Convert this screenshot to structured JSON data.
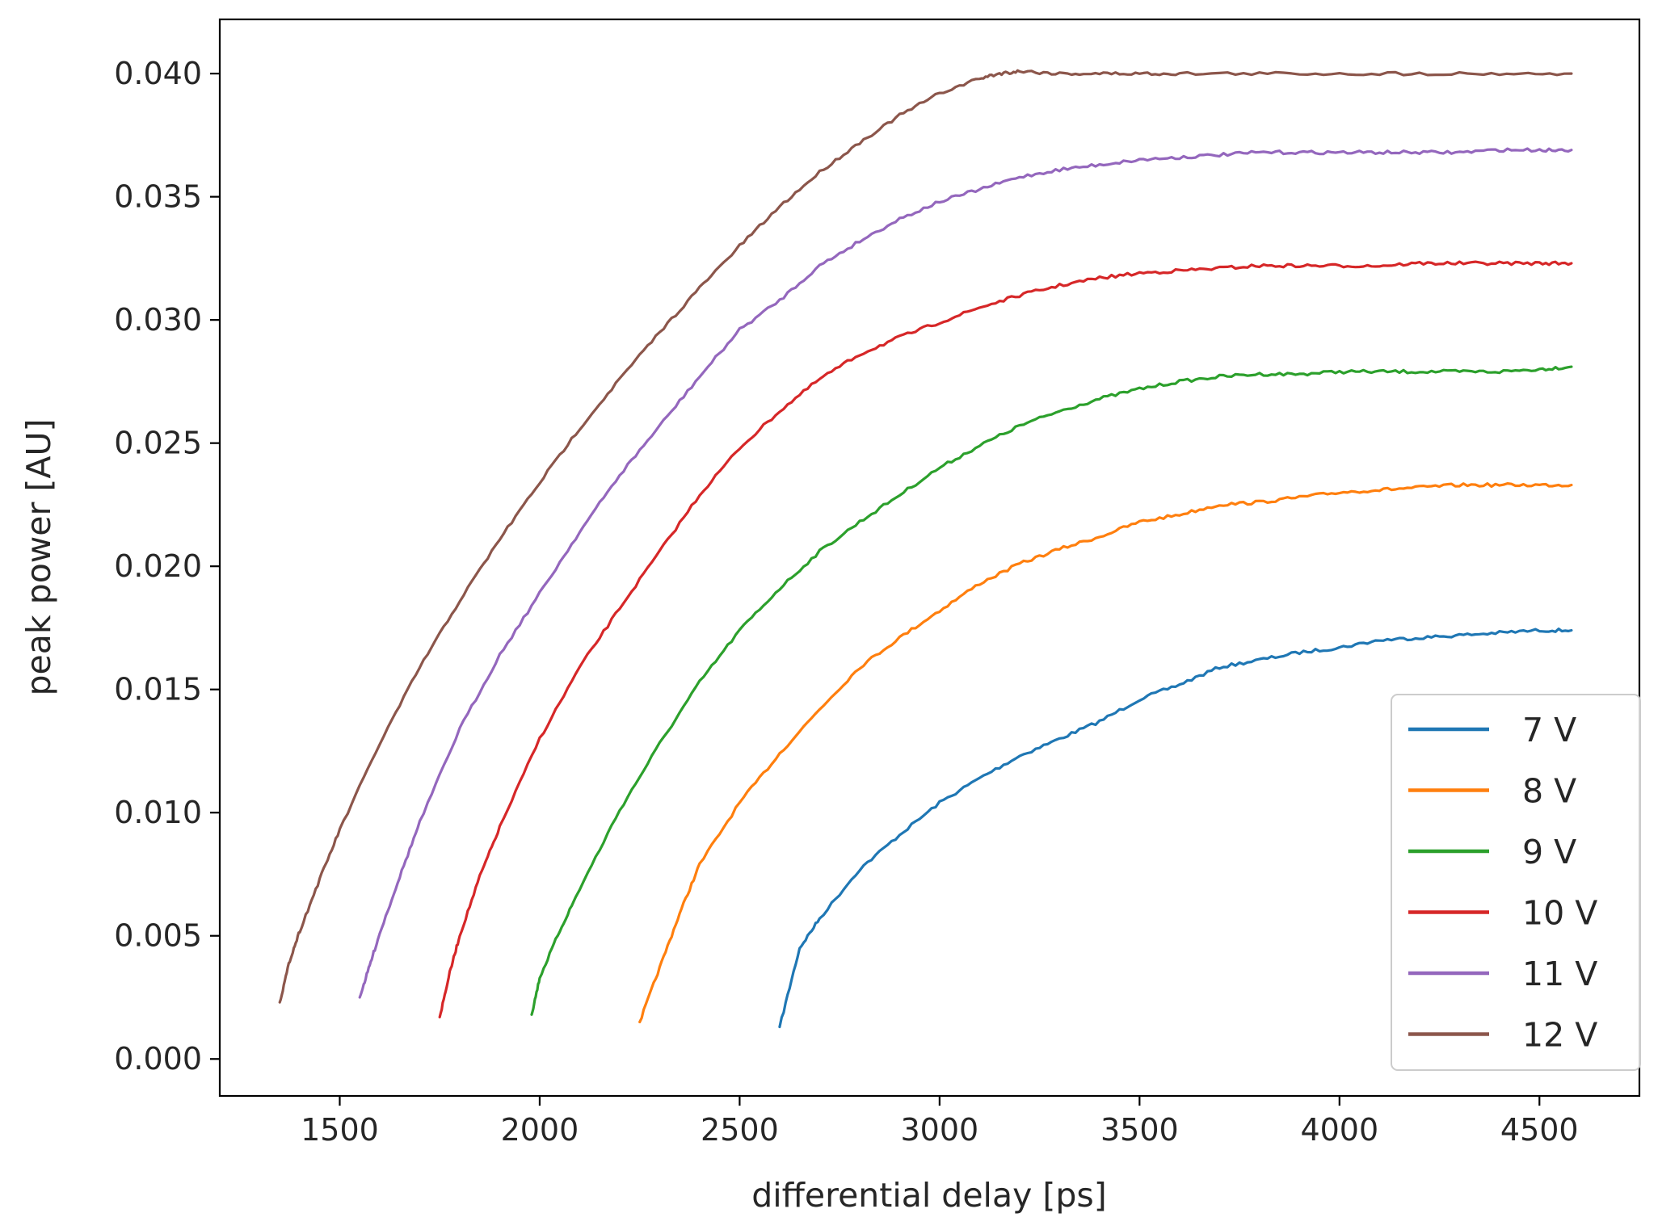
{
  "chart_data": {
    "type": "line",
    "xlabel": "differential delay [ps]",
    "ylabel": "peak power [AU]",
    "xlim": [
      1200,
      4750
    ],
    "ylim": [
      -0.0015,
      0.0422
    ],
    "xticks": [
      1500,
      2000,
      2500,
      3000,
      3500,
      4000,
      4500
    ],
    "xtick_labels": [
      "1500",
      "2000",
      "2500",
      "3000",
      "3500",
      "4000",
      "4500"
    ],
    "yticks": [
      0.0,
      0.005,
      0.01,
      0.015,
      0.02,
      0.025,
      0.03,
      0.035,
      0.04
    ],
    "ytick_labels": [
      "0.000",
      "0.005",
      "0.010",
      "0.015",
      "0.020",
      "0.025",
      "0.030",
      "0.035",
      "0.040"
    ],
    "grid": false,
    "legend_position": "lower-right",
    "series": [
      {
        "name": "7 V",
        "color": "#1f77b4",
        "x": [
          2600,
          2650,
          2700,
          2800,
          2900,
          3000,
          3100,
          3200,
          3300,
          3400,
          3500,
          3600,
          3700,
          3800,
          3900,
          4000,
          4100,
          4200,
          4300,
          4400,
          4500,
          4580
        ],
        "y": [
          0.0013,
          0.0045,
          0.0057,
          0.0077,
          0.0091,
          0.0104,
          0.0114,
          0.0123,
          0.013,
          0.0137,
          0.0146,
          0.0152,
          0.0159,
          0.0162,
          0.0165,
          0.0167,
          0.017,
          0.0171,
          0.0172,
          0.0173,
          0.0174,
          0.0174
        ]
      },
      {
        "name": "8 V",
        "color": "#ff7f0e",
        "x": [
          2250,
          2300,
          2350,
          2400,
          2500,
          2600,
          2700,
          2800,
          2900,
          3000,
          3100,
          3200,
          3300,
          3400,
          3500,
          3600,
          3700,
          3800,
          3900,
          4000,
          4100,
          4200,
          4300,
          4400,
          4500,
          4580
        ],
        "y": [
          0.0015,
          0.0037,
          0.0059,
          0.0079,
          0.0104,
          0.0124,
          0.0142,
          0.0159,
          0.0171,
          0.0182,
          0.0193,
          0.0201,
          0.0207,
          0.0212,
          0.0218,
          0.0221,
          0.0225,
          0.0226,
          0.0228,
          0.023,
          0.0231,
          0.0232,
          0.0233,
          0.0233,
          0.0233,
          0.0233
        ]
      },
      {
        "name": "9 V",
        "color": "#2ca02c",
        "x": [
          1980,
          2000,
          2050,
          2100,
          2200,
          2300,
          2400,
          2500,
          2600,
          2700,
          2800,
          2900,
          3000,
          3100,
          3200,
          3300,
          3400,
          3500,
          3600,
          3700,
          3800,
          3900,
          4000,
          4100,
          4200,
          4300,
          4400,
          4500,
          4580
        ],
        "y": [
          0.0018,
          0.0033,
          0.0052,
          0.0069,
          0.0101,
          0.0128,
          0.0153,
          0.0174,
          0.0191,
          0.0206,
          0.0218,
          0.0229,
          0.024,
          0.0249,
          0.0257,
          0.0263,
          0.0268,
          0.0272,
          0.0275,
          0.0277,
          0.0278,
          0.0278,
          0.0279,
          0.0279,
          0.0279,
          0.0279,
          0.0279,
          0.028,
          0.0281
        ]
      },
      {
        "name": "10 V",
        "color": "#d62728",
        "x": [
          1750,
          1775,
          1800,
          1850,
          1900,
          2000,
          2100,
          2200,
          2300,
          2400,
          2500,
          2600,
          2700,
          2800,
          2900,
          3000,
          3100,
          3200,
          3300,
          3400,
          3500,
          3600,
          3700,
          3800,
          3900,
          4000,
          4100,
          4200,
          4300,
          4400,
          4500,
          4580
        ],
        "y": [
          0.0017,
          0.0035,
          0.005,
          0.0074,
          0.0094,
          0.013,
          0.0159,
          0.0183,
          0.0206,
          0.0229,
          0.0248,
          0.0263,
          0.0276,
          0.0286,
          0.0293,
          0.0299,
          0.0305,
          0.031,
          0.0314,
          0.0317,
          0.0319,
          0.032,
          0.0321,
          0.0322,
          0.0322,
          0.0322,
          0.0322,
          0.0323,
          0.0323,
          0.0323,
          0.0323,
          0.0323
        ]
      },
      {
        "name": "11 V",
        "color": "#9467bd",
        "x": [
          1550,
          1575,
          1600,
          1650,
          1700,
          1800,
          1900,
          2000,
          2100,
          2200,
          2300,
          2400,
          2500,
          2600,
          2700,
          2800,
          2900,
          3000,
          3100,
          3200,
          3300,
          3400,
          3500,
          3600,
          3700,
          3800,
          3900,
          4000,
          4100,
          4200,
          4300,
          4400,
          4500,
          4580
        ],
        "y": [
          0.0025,
          0.0038,
          0.0051,
          0.0074,
          0.0096,
          0.0134,
          0.0164,
          0.0189,
          0.0214,
          0.0237,
          0.0257,
          0.0277,
          0.0296,
          0.0308,
          0.0322,
          0.0332,
          0.0341,
          0.0348,
          0.0353,
          0.0358,
          0.0361,
          0.0363,
          0.0365,
          0.0366,
          0.0367,
          0.0368,
          0.0368,
          0.0368,
          0.0368,
          0.0368,
          0.0368,
          0.0369,
          0.0369,
          0.0369
        ]
      },
      {
        "name": "12 V",
        "color": "#8c564b",
        "x": [
          1350,
          1375,
          1400,
          1450,
          1500,
          1600,
          1700,
          1800,
          1900,
          2000,
          2100,
          2200,
          2300,
          2400,
          2500,
          2600,
          2700,
          2800,
          2900,
          3000,
          3100,
          3150,
          3200,
          3300,
          3400,
          3500,
          3600,
          3800,
          4000,
          4200,
          4400,
          4580
        ],
        "y": [
          0.0023,
          0.004,
          0.0052,
          0.0073,
          0.0093,
          0.0128,
          0.0159,
          0.0186,
          0.0211,
          0.0234,
          0.0256,
          0.0276,
          0.0295,
          0.0313,
          0.033,
          0.0346,
          0.036,
          0.0372,
          0.0383,
          0.0392,
          0.0398,
          0.04,
          0.0401,
          0.04,
          0.04,
          0.04,
          0.04,
          0.04,
          0.04,
          0.04,
          0.04,
          0.04
        ]
      }
    ]
  }
}
